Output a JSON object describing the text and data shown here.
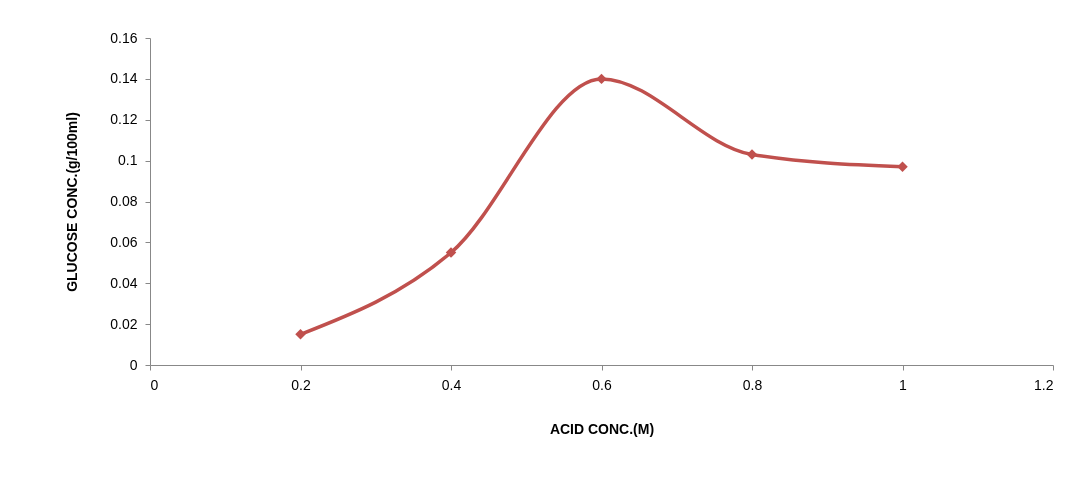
{
  "chart_data": {
    "type": "line",
    "xlabel": "ACID CONC.(M)",
    "ylabel": "GLUCOSE CONC.(g/100ml)",
    "x": [
      0.2,
      0.4,
      0.6,
      0.8,
      1.0
    ],
    "series": [
      {
        "color": "#c0504d",
        "values": [
          0.015,
          0.055,
          0.14,
          0.103,
          0.097
        ]
      }
    ],
    "xlim": [
      0,
      1.2
    ],
    "xticks": [
      0,
      0.2,
      0.4,
      0.6,
      0.8,
      1,
      1.2
    ],
    "ylim": [
      0,
      0.16
    ],
    "yticks": [
      0,
      0.02,
      0.04,
      0.06,
      0.08,
      0.1,
      0.12,
      0.14,
      0.16
    ],
    "grid": false,
    "marker": "diamond",
    "line_style": "solid"
  }
}
